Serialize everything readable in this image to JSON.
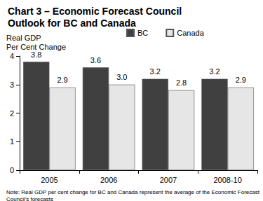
{
  "chart_data": {
    "type": "bar",
    "title": "Chart 3 – Economic Forecast Council\nOutlook for BC and Canada",
    "y_label": "Real GDP\nPer Cent Change",
    "note": "Note: Real GDP per cent change for BC and Canada represent the average of the Economic Forecast Council's forecasts",
    "categories": [
      "2005",
      "2006",
      "2007",
      "2008-10"
    ],
    "series": [
      {
        "name": "BC",
        "color": "#404040",
        "values": [
          3.8,
          3.6,
          3.2,
          3.2
        ]
      },
      {
        "name": "Canada",
        "color": "#e6e6e6",
        "values": [
          2.9,
          3.0,
          2.8,
          2.9
        ],
        "value_labels": [
          "2.9",
          "3.0",
          "2.8",
          "2.9"
        ]
      }
    ],
    "ylim": [
      0,
      4
    ],
    "yticks": [
      0,
      1,
      2,
      3,
      4
    ],
    "grid": false,
    "legend": "top",
    "data_labels": true
  }
}
